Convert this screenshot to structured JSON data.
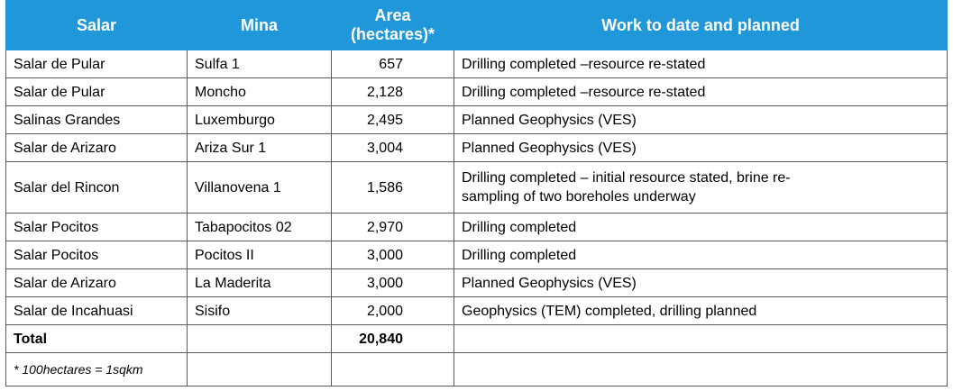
{
  "headers": {
    "salar": "Salar",
    "mina": "Mina",
    "area_line1": "Area",
    "area_line2": "(hectares)*",
    "work": "Work to date and planned"
  },
  "rows": [
    {
      "salar": "Salar de Pular",
      "mina": "Sulfa 1",
      "area": "657",
      "work": "Drilling completed –resource re-stated"
    },
    {
      "salar": "Salar de Pular",
      "mina": "Moncho",
      "area": "2,128",
      "work": "Drilling completed –resource re-stated"
    },
    {
      "salar": "Salinas Grandes",
      "mina": "Luxemburgo",
      "area": "2,495",
      "work": "Planned Geophysics (VES)"
    },
    {
      "salar": "Salar de Arizaro",
      "mina": "Ariza Sur 1",
      "area": "3,004",
      "work": "Planned Geophysics (VES)"
    },
    {
      "salar": "Salar del Rincon",
      "mina": "Villanovena 1",
      "area": "1,586",
      "work_line1": "Drilling completed – initial resource stated, brine re-",
      "work_line2": "sampling of two boreholes underway"
    },
    {
      "salar": "Salar Pocitos",
      "mina": "Tabapocitos 02",
      "area": "2,970",
      "work": "Drilling completed"
    },
    {
      "salar": "Salar Pocitos",
      "mina": "Pocitos II",
      "area": "3,000",
      "work": "Drilling completed"
    },
    {
      "salar": "Salar de Arizaro",
      "mina": "La Maderita",
      "area": "3,000",
      "work": "Planned Geophysics (VES)"
    },
    {
      "salar": "Salar de Incahuasi",
      "mina": "Sisifo",
      "area": "2,000",
      "work": "Geophysics (TEM) completed, drilling planned"
    }
  ],
  "total": {
    "label": "Total",
    "area": "20,840"
  },
  "footnote": "* 100hectares = 1sqkm"
}
